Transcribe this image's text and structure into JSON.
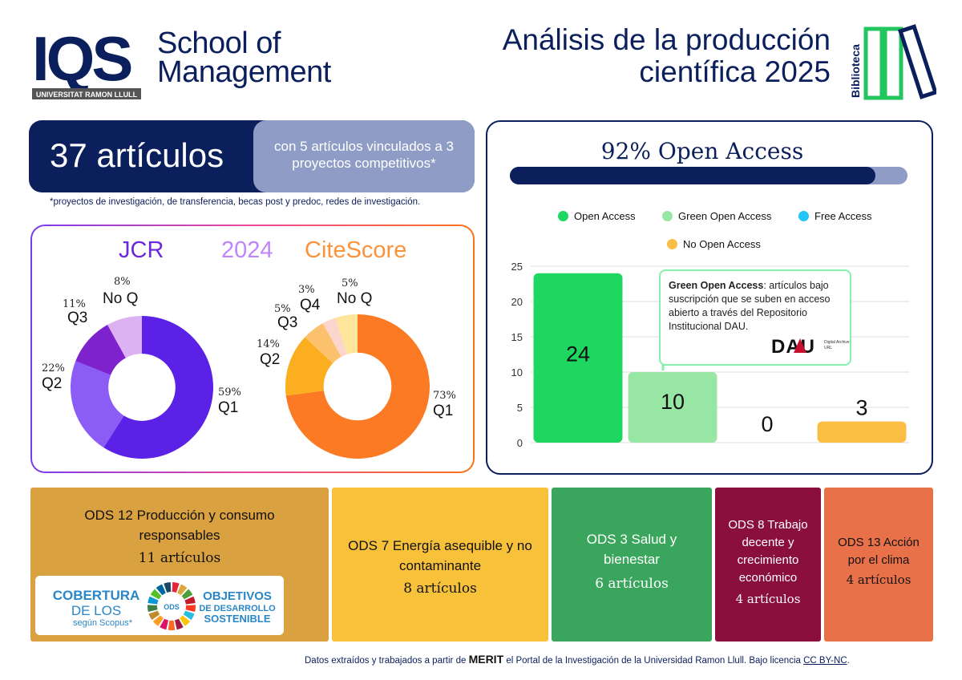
{
  "header": {
    "logo_text": "IQS",
    "logo_sub": "UNIVERSITAT RAMON LLULL",
    "school_line1": "School of",
    "school_line2": "Management",
    "title_line1": "Análisis de la producción",
    "title_line2": "científica 2025",
    "biblio_label": "Biblioteca"
  },
  "summary": {
    "count": "37 artículos",
    "linked": "con 5 artículos vinculados a 3 proyectos competitivos*",
    "footnote": "*proyectos de investigación, de transferencia, becas post y predoc, redes de investigación."
  },
  "quartiles": {
    "jcr_title": "JCR",
    "year": "2024",
    "citescore_title": "CiteScore"
  },
  "open_access": {
    "title": "92% Open Access",
    "percent": 92,
    "callout_bold": "Green Open Access",
    "callout_text": ": artículos bajo suscripción que se suben en acceso abierto a través del Repositorio Institucional DAU.",
    "dau_logo": "DAU",
    "dau_sub1": "Digital Archive",
    "dau_sub2": "URL"
  },
  "chart_data": [
    {
      "type": "pie",
      "title": "JCR",
      "donut": true,
      "categories": [
        "Q1",
        "Q2",
        "Q3",
        "No Q"
      ],
      "values": [
        59,
        22,
        11,
        8
      ],
      "labels": [
        "59%",
        "22%",
        "11%",
        "8%"
      ],
      "colors": [
        "#5b21e6",
        "#8b5cf6",
        "#7e22ce",
        "#ddb2f2"
      ]
    },
    {
      "type": "pie",
      "title": "CiteScore",
      "donut": true,
      "categories": [
        "Q1",
        "Q2",
        "Q3",
        "Q4",
        "No Q"
      ],
      "values": [
        73,
        14,
        5,
        3,
        5
      ],
      "labels": [
        "73%",
        "14%",
        "5%",
        "3%",
        "5%"
      ],
      "colors": [
        "#fb7a23",
        "#fbae1f",
        "#fcc16c",
        "#fcd6cc",
        "#fde59c"
      ]
    },
    {
      "type": "bar",
      "categories": [
        "Open Access",
        "Green Open Access",
        "Free Access",
        "No Open Access"
      ],
      "values": [
        24,
        10,
        0,
        3
      ],
      "value_labels": [
        "24",
        "10",
        "0",
        "3"
      ],
      "colors": [
        "#1ed760",
        "#98e6a4",
        "#22c5f5",
        "#fbbe45"
      ],
      "ylim": [
        0,
        25
      ],
      "yticks": [
        "0",
        "5",
        "10",
        "15",
        "20",
        "25"
      ],
      "legend": "top",
      "grid": true
    }
  ],
  "ods": [
    {
      "name": "ODS 12 Producción y consumo responsables",
      "count": "11 artículos"
    },
    {
      "name": "ODS 7 Energía asequible y no contaminante",
      "count": "8 artículos"
    },
    {
      "name": "ODS 3 Salud y bienestar",
      "count": "6 artículos"
    },
    {
      "name": "ODS 8 Trabajo decente y crecimiento económico",
      "count": "4 artículos"
    },
    {
      "name": "ODS 13 Acción por el clima",
      "count": "4 artículos"
    }
  ],
  "coverage": {
    "line1": "COBERTURA",
    "line2": "DE LOS",
    "line3": "según Scopus*",
    "ods_badge": "ODS",
    "obj1": "OBJETIVOS",
    "obj2": "DE DESARROLLO",
    "obj3": "SOSTENIBLE"
  },
  "footer": {
    "prefix": "Datos extraídos y trabajados a partir de",
    "merit": "MERIT",
    "middle": "el Portal de la Investigación de la Universidad Ramon Llull. Bajo licencia",
    "license": "CC BY-NC",
    "suffix": "."
  }
}
